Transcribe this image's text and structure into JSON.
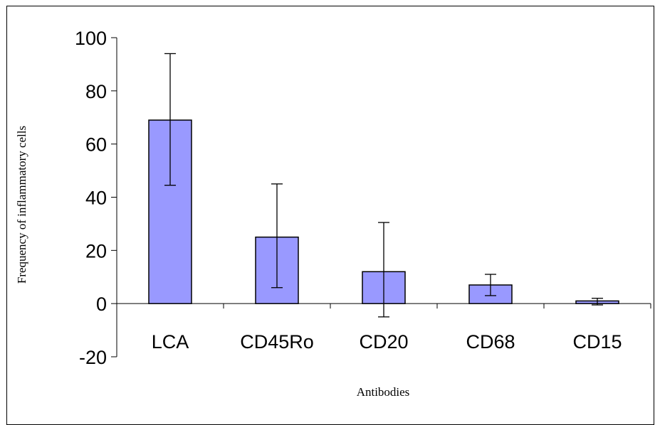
{
  "chart_data": {
    "type": "bar",
    "title": "",
    "xlabel": "Antibodies",
    "ylabel": "Frequency of inflammatory cells",
    "categories": [
      "LCA",
      "CD45Ro",
      "CD20",
      "CD68",
      "CD15"
    ],
    "values": [
      69,
      25,
      12,
      7,
      1
    ],
    "error_low": [
      44.5,
      6,
      -5,
      3,
      -0.5
    ],
    "error_high": [
      94,
      45,
      30.5,
      11,
      2
    ],
    "ylim": [
      -20,
      100
    ],
    "yticks": [
      -20,
      0,
      20,
      40,
      60,
      80,
      100
    ],
    "grid": false,
    "colors": {
      "bar_fill": "#9999ff",
      "bar_stroke": "#000000",
      "axis": "#000000"
    }
  }
}
